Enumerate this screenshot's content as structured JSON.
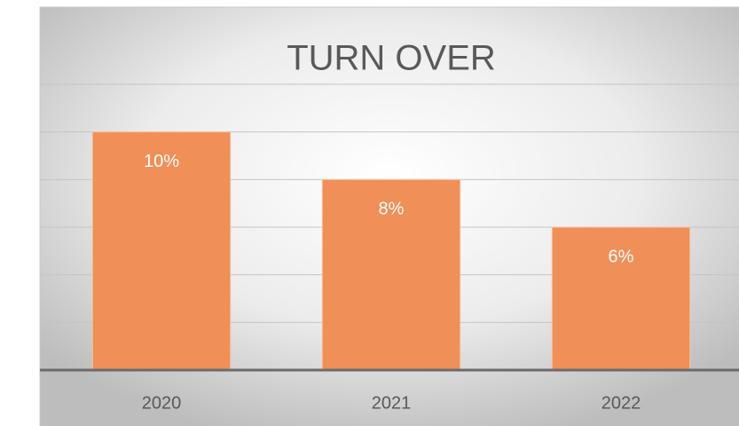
{
  "chart_data": {
    "type": "bar",
    "title": "TURN OVER",
    "categories": [
      "2020",
      "2021",
      "2022"
    ],
    "values": [
      10,
      8,
      6
    ],
    "value_labels": [
      "10%",
      "8%",
      "6%"
    ],
    "color": "#f08f57",
    "ylim": [
      0,
      12
    ],
    "yticks": [
      0,
      2,
      4,
      6,
      8,
      10,
      12
    ],
    "grid": true
  }
}
